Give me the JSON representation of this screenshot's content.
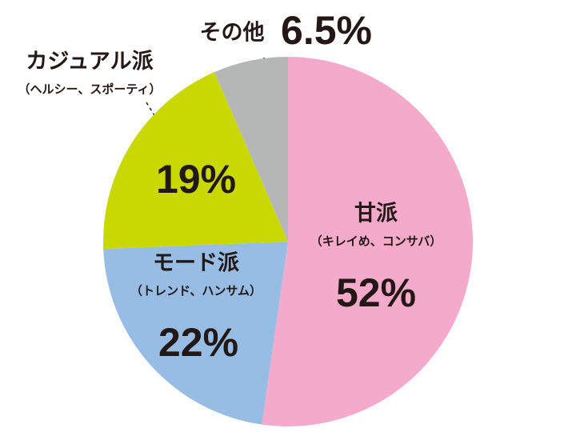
{
  "chart_data": {
    "type": "pie",
    "categories": [
      "甘派",
      "モード派",
      "カジュアル派",
      "その他"
    ],
    "sublabels": [
      "（キレイめ、コンサバ）",
      "（トレンド、ハンサム）",
      "（ヘルシー、スポーティ）",
      null
    ],
    "values": [
      52,
      22,
      19,
      6.5
    ],
    "value_labels": [
      "52%",
      "22%",
      "19%",
      "6.5%"
    ],
    "colors": [
      "#f4aacb",
      "#97bde4",
      "#c9d900",
      "#b5b6b6"
    ]
  }
}
